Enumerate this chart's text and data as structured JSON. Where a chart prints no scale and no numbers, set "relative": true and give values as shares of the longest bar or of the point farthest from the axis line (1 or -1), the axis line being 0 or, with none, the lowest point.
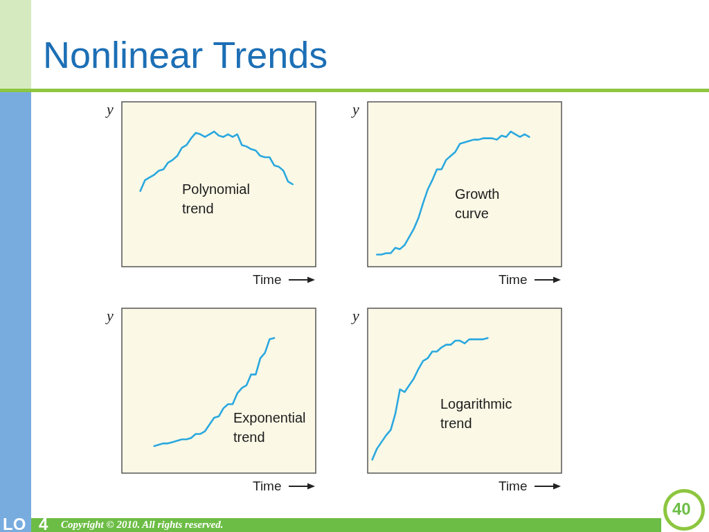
{
  "chart_data": [
    {
      "type": "line",
      "title": "Nonlinear Trends",
      "relative": true,
      "xlabel": "Time",
      "ylabel": "y",
      "color": "#2aa8df",
      "annotations": [
        "Polynomial trend"
      ],
      "categories": [
        null,
        null,
        null,
        null,
        null,
        null,
        null,
        null,
        null,
        null,
        null,
        null,
        null,
        null,
        null,
        null,
        null,
        null,
        null,
        null,
        null,
        null,
        null,
        null,
        null,
        null,
        null,
        null,
        null,
        null,
        null,
        null,
        null,
        null,
        null,
        null,
        null,
        null,
        null,
        null,
        null,
        null,
        null
      ],
      "values": [
        null,
        null,
        null,
        null,
        0.56,
        0.64,
        0.66,
        0.68,
        0.71,
        0.72,
        0.77,
        0.79,
        0.82,
        0.88,
        0.9,
        0.95,
        0.99,
        0.98,
        0.96,
        0.98,
        1.0,
        0.97,
        0.96,
        0.98,
        0.96,
        0.98,
        0.9,
        0.89,
        0.87,
        0.86,
        0.82,
        0.81,
        0.81,
        0.75,
        0.74,
        0.71,
        0.63,
        0.61,
        null,
        null,
        null,
        null,
        null
      ]
    },
    {
      "type": "line",
      "relative": true,
      "xlabel": "Time",
      "ylabel": "y",
      "color": "#2aa8df",
      "annotations": [
        "Growth curve"
      ],
      "categories": [
        null,
        null,
        null,
        null,
        null,
        null,
        null,
        null,
        null,
        null,
        null,
        null,
        null,
        null,
        null,
        null,
        null,
        null,
        null,
        null,
        null,
        null,
        null,
        null,
        null,
        null,
        null,
        null,
        null,
        null,
        null,
        null,
        null,
        null,
        null,
        null,
        null,
        null,
        null,
        null,
        null,
        null,
        null
      ],
      "values": [
        null,
        null,
        0.09,
        0.09,
        0.1,
        0.1,
        0.14,
        0.13,
        0.16,
        0.22,
        0.28,
        0.36,
        0.47,
        0.57,
        0.64,
        0.72,
        0.72,
        0.79,
        0.82,
        0.85,
        0.91,
        0.92,
        0.93,
        0.94,
        0.94,
        0.95,
        0.95,
        0.95,
        0.94,
        0.97,
        0.96,
        1.0,
        0.98,
        0.96,
        0.98,
        0.96,
        null,
        null,
        null,
        null,
        null,
        null,
        null
      ]
    },
    {
      "type": "line",
      "relative": true,
      "xlabel": "Time",
      "ylabel": "y",
      "color": "#2aa8df",
      "annotations": [
        "Exponential trend"
      ],
      "categories": [
        null,
        null,
        null,
        null,
        null,
        null,
        null,
        null,
        null,
        null,
        null,
        null,
        null,
        null,
        null,
        null,
        null,
        null,
        null,
        null,
        null,
        null,
        null,
        null,
        null,
        null,
        null,
        null,
        null,
        null,
        null,
        null,
        null,
        null,
        null,
        null,
        null,
        null,
        null,
        null,
        null,
        null,
        null
      ],
      "values": [
        null,
        null,
        null,
        null,
        null,
        null,
        null,
        0.2,
        0.21,
        0.22,
        0.22,
        0.23,
        0.24,
        0.25,
        0.25,
        0.26,
        0.29,
        0.29,
        0.31,
        0.36,
        0.41,
        0.42,
        0.48,
        0.51,
        0.51,
        0.59,
        0.63,
        0.65,
        0.73,
        0.73,
        0.85,
        0.89,
        0.99,
        1.0,
        null,
        null,
        null,
        null,
        null,
        null,
        null,
        null,
        null
      ]
    },
    {
      "type": "line",
      "relative": true,
      "xlabel": "Time",
      "ylabel": "y",
      "color": "#2aa8df",
      "annotations": [
        "Logarithmic trend",
        "LO 4",
        "Copyright © 2010. All rights reserved.",
        "40"
      ],
      "categories": [
        null,
        null,
        null,
        null,
        null,
        null,
        null,
        null,
        null,
        null,
        null,
        null,
        null,
        null,
        null,
        null,
        null,
        null,
        null,
        null,
        null,
        null,
        null,
        null,
        null,
        null,
        null,
        null,
        null,
        null,
        null,
        null,
        null,
        null,
        null,
        null,
        null,
        null,
        null,
        null,
        null,
        null,
        null
      ],
      "values": [
        null,
        0.1,
        0.18,
        0.23,
        0.28,
        0.32,
        0.44,
        0.62,
        0.6,
        0.65,
        0.7,
        0.77,
        0.83,
        0.85,
        0.9,
        0.9,
        0.93,
        0.95,
        0.95,
        0.98,
        0.98,
        0.96,
        0.99,
        0.99,
        0.99,
        0.99,
        1.0,
        null,
        null,
        null,
        null,
        null,
        null,
        null,
        null,
        null,
        null,
        null,
        null,
        null,
        null,
        null,
        null
      ]
    }
  ]
}
